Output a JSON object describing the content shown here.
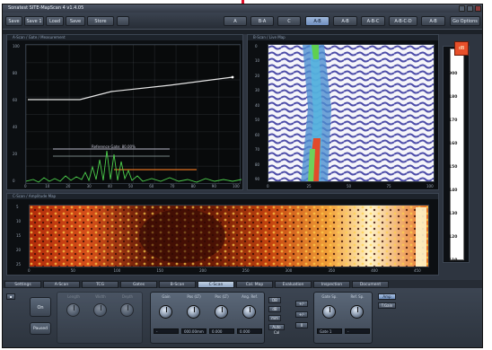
{
  "window_title": "Sonatest SITE-MapScan 4 v1.4.05",
  "toolbar": {
    "buttons": [
      "Save",
      "Save 1",
      "Load",
      "Save",
      "Store"
    ],
    "mode_tabs": [
      "A",
      "B-A",
      "C",
      "A-B",
      "A-B",
      "A-B-C",
      "A-B-C-D",
      "A-B"
    ],
    "active_mode": 3,
    "right_button": "Go Options"
  },
  "ascan": {
    "title": "A-Scan / Gate / Measurement",
    "gate_label": "Reference Gate: 80.00%",
    "y_ticks": [
      "100",
      "80",
      "60",
      "40",
      "20",
      "0"
    ],
    "x_ticks": [
      "0",
      "10",
      "20",
      "30",
      "40",
      "50",
      "60",
      "70",
      "80",
      "90",
      "100"
    ]
  },
  "bscan": {
    "title": "B-Scan / Live Map",
    "y_ticks": [
      "0",
      "10",
      "20",
      "30",
      "40",
      "50",
      "60",
      "70",
      "80",
      "90"
    ],
    "x_ticks": [
      "0",
      "25",
      "50",
      "75",
      "100"
    ]
  },
  "cscan": {
    "title": "C-Scan / Amplitude Map",
    "y_ticks": [
      "5",
      "10",
      "15",
      "20",
      "25"
    ],
    "x_ticks": [
      "0",
      "50",
      "100",
      "150",
      "200",
      "250",
      "300",
      "350",
      "400",
      "450"
    ]
  },
  "colorbar": {
    "button": "dB",
    "ticks": [
      "900",
      "180",
      "170",
      "160",
      "150",
      "140",
      "130",
      "120",
      "110"
    ]
  },
  "bottom_tabs": [
    "Settings",
    "A-Scan",
    "TCG",
    "Gates",
    "B-Scan",
    "C-Scan",
    "Cal. Map",
    "Evaluation",
    "Inspection",
    "Document"
  ],
  "active_tab": 5,
  "controls": {
    "left_buttons": [
      "On",
      "Paused"
    ],
    "disabled_labels": [
      "Length",
      "Width",
      "Depth"
    ],
    "knobs": [
      {
        "label": "Gain",
        "value": "-"
      },
      {
        "label": "Pos (LT)",
        "value": "000.00mm"
      },
      {
        "label": "Pos (LT)",
        "value": "0.000"
      },
      {
        "label": "Ang. Ref.",
        "value": "0.000"
      },
      {
        "label": "Gate Sp.",
        "value": "Gate 1"
      },
      {
        "label": "Ref. Sp.",
        "value": "-"
      }
    ],
    "small_buttons": [
      "DB",
      "dB",
      "mm",
      "Auto Cal"
    ],
    "pn_buttons": [
      "+/-",
      "+/-",
      "0"
    ],
    "right_buttons": [
      "Amp",
      "T.Gain"
    ]
  }
}
